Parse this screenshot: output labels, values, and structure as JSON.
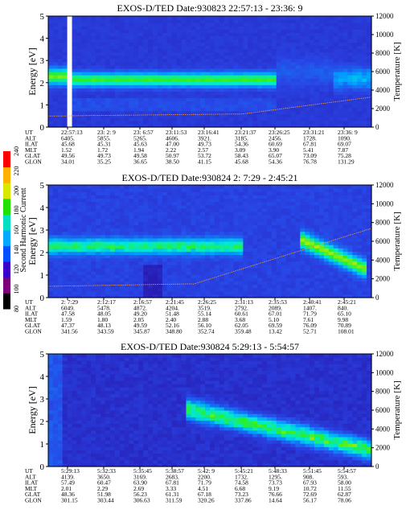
{
  "figure": {
    "colorbar": {
      "label": "Second Harmonic Current",
      "ticks": [
        "80",
        "100",
        "120",
        "140",
        "160",
        "180",
        "200",
        "220",
        "240"
      ],
      "colors": [
        "#000000",
        "#7a007a",
        "#3a00c8",
        "#0050ff",
        "#00a8ff",
        "#00e0c0",
        "#20e000",
        "#d8e800",
        "#ffb000",
        "#ff0000"
      ]
    },
    "ephemeris_row_labels": [
      "UT",
      "ALT",
      "ILAT",
      "MLT",
      "GLAT",
      "GLON"
    ]
  },
  "chart_data": [
    {
      "type": "heatmap",
      "title": "EXOS-D/TED   Date:930823  22:57:13 - 23:36: 9",
      "ylabel": "Energy [eV]",
      "y2label": "Temperature [K]",
      "ylim": [
        0,
        5
      ],
      "y2lim": [
        0,
        12000
      ],
      "yticks": [
        "0",
        "1",
        "2",
        "3",
        "4",
        "5"
      ],
      "y2ticks": [
        "0",
        "2000",
        "4000",
        "6000",
        "8000",
        "10000",
        "12000"
      ],
      "columns": [
        {
          "UT": "22:57:13",
          "ALT": "6405.",
          "ILAT": "45.68",
          "MLT": "1.52",
          "GLAT": "49.56",
          "GLON": "34.01"
        },
        {
          "UT": "23: 2: 9",
          "ALT": "5855.",
          "ILAT": "45.31",
          "MLT": "1.72",
          "GLAT": "49.73",
          "GLON": "35.25"
        },
        {
          "UT": "23: 6:57",
          "ALT": "5265.",
          "ILAT": "45.63",
          "MLT": "1.94",
          "GLAT": "49.58",
          "GLON": "36.65"
        },
        {
          "UT": "23:11:53",
          "ALT": "4606.",
          "ILAT": "47.00",
          "MLT": "2.22",
          "GLAT": "50.97",
          "GLON": "38.50"
        },
        {
          "UT": "23:16:41",
          "ALT": "3921.",
          "ILAT": "49.73",
          "MLT": "2.57",
          "GLAT": "53.72",
          "GLON": "41.15"
        },
        {
          "UT": "23:21:37",
          "ALT": "3185.",
          "ILAT": "54.36",
          "MLT": "3.09",
          "GLAT": "58.43",
          "GLON": "45.68"
        },
        {
          "UT": "23:26:25",
          "ALT": "2456.",
          "ILAT": "60.69",
          "MLT": "3.90",
          "GLAT": "65.07",
          "GLON": "54.36"
        },
        {
          "UT": "23:31:21",
          "ALT": "1728.",
          "ILAT": "67.81",
          "MLT": "5.41",
          "GLAT": "73.09",
          "GLON": "76.78"
        },
        {
          "UT": "23:36: 9",
          "ALT": "1090.",
          "ILAT": "69.07",
          "MLT": "7.87",
          "GLAT": "75.28",
          "GLON": "131.29"
        }
      ]
    },
    {
      "type": "heatmap",
      "title": "EXOS-D/TED   Date:930824   2: 7:29 - 2:45:21",
      "ylabel": "Energy [eV]",
      "y2label": "Temperature [K]",
      "ylim": [
        0,
        5
      ],
      "y2lim": [
        0,
        12000
      ],
      "yticks": [
        "0",
        "1",
        "2",
        "3",
        "4",
        "5"
      ],
      "y2ticks": [
        "0",
        "2000",
        "4000",
        "6000",
        "8000",
        "10000",
        "12000"
      ],
      "columns": [
        {
          "UT": "2: 7:29",
          "ALT": "6049.",
          "ILAT": "47.58",
          "MLT": "1.59",
          "GLAT": "47.37",
          "GLON": "341.56"
        },
        {
          "UT": "2:12:17",
          "ALT": "5478.",
          "ILAT": "48.05",
          "MLT": "1.80",
          "GLAT": "48.13",
          "GLON": "343.59"
        },
        {
          "UT": "2:16:57",
          "ALT": "4872.",
          "ILAT": "49.20",
          "MLT": "2.05",
          "GLAT": "49.59",
          "GLON": "345.87"
        },
        {
          "UT": "2:21:45",
          "ALT": "4204.",
          "ILAT": "51.48",
          "MLT": "2.40",
          "GLAT": "52.16",
          "GLON": "348.80"
        },
        {
          "UT": "2:26:25",
          "ALT": "3519.",
          "ILAT": "55.14",
          "MLT": "2.88",
          "GLAT": "56.10",
          "GLON": "352.74"
        },
        {
          "UT": "2:31:13",
          "ALT": "2792.",
          "ILAT": "60.61",
          "MLT": "3.68",
          "GLAT": "62.05",
          "GLON": "359.48"
        },
        {
          "UT": "2:35:53",
          "ALT": "2089.",
          "ILAT": "67.01",
          "MLT": "5.10",
          "GLAT": "69.59",
          "GLON": "13.42"
        },
        {
          "UT": "2:40:41",
          "ALT": "1407.",
          "ILAT": "71.79",
          "MLT": "7.61",
          "GLAT": "76.09",
          "GLON": "52.71"
        },
        {
          "UT": "2:45:21",
          "ALT": "840.",
          "ILAT": "65.10",
          "MLT": "9.98",
          "GLAT": "70.89",
          "GLON": "108.01"
        }
      ]
    },
    {
      "type": "heatmap",
      "title": "EXOS-D/TED   Date:930824   5:29:13 - 5:54:57",
      "ylabel": "Energy [eV]",
      "y2label": "Temperature [K]",
      "ylim": [
        0,
        5
      ],
      "y2lim": [
        0,
        12000
      ],
      "yticks": [
        "0",
        "1",
        "2",
        "3",
        "4",
        "5"
      ],
      "y2ticks": [
        "0",
        "2000",
        "4000",
        "6000",
        "8000",
        "10000",
        "12000"
      ],
      "columns": [
        {
          "UT": "5:29:13",
          "ALT": "4139.",
          "ILAT": "57.49",
          "MLT": "2.01",
          "GLAT": "48.36",
          "GLON": "301.15"
        },
        {
          "UT": "5:32:33",
          "ALT": "3650.",
          "ILAT": "60.47",
          "MLT": "2.29",
          "GLAT": "51.98",
          "GLON": "303.44"
        },
        {
          "UT": "5:35:45",
          "ALT": "3169.",
          "ILAT": "63.90",
          "MLT": "2.69",
          "GLAT": "56.23",
          "GLON": "306.63"
        },
        {
          "UT": "5:38:57",
          "ALT": "2683.",
          "ILAT": "67.81",
          "MLT": "3.33",
          "GLAT": "61.31",
          "GLON": "311.59"
        },
        {
          "UT": "5:42: 9",
          "ALT": "2200.",
          "ILAT": "71.79",
          "MLT": "4.51",
          "GLAT": "67.18",
          "GLON": "320.26"
        },
        {
          "UT": "5:45:21",
          "ALT": "1732.",
          "ILAT": "74.58",
          "MLT": "6.68",
          "GLAT": "73.23",
          "GLON": "337.86"
        },
        {
          "UT": "5:48:33",
          "ALT": "1295.",
          "ILAT": "73.73",
          "MLT": "9.19",
          "GLAT": "76.66",
          "GLON": "14.64"
        },
        {
          "UT": "5:51:45",
          "ALT": "908.",
          "ILAT": "67.93",
          "MLT": "10.72",
          "GLAT": "72.69",
          "GLON": "56.17"
        },
        {
          "UT": "5:54:57",
          "ALT": "593.",
          "ILAT": "58.00",
          "MLT": "11.55",
          "GLAT": "62.87",
          "GLON": "78.06"
        }
      ]
    }
  ]
}
